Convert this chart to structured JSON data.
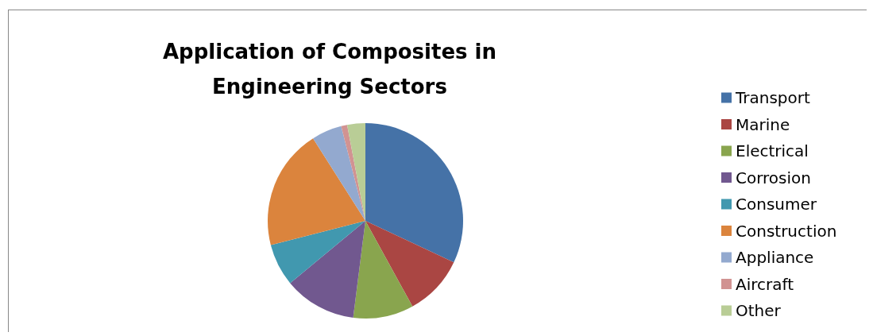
{
  "chart_data": {
    "type": "pie",
    "title": "Application of Composites in\nEngineering Sectors",
    "categories": [
      "Transport",
      "Marine",
      "Electrical",
      "Corrosion",
      "Consumer",
      "Construction",
      "Appliance",
      "Aircraft",
      "Other"
    ],
    "values": [
      32,
      10,
      10,
      12,
      7,
      20,
      5,
      1,
      3
    ],
    "colors": [
      "#4572a7",
      "#aa4643",
      "#89a54e",
      "#71588f",
      "#4198af",
      "#db843d",
      "#93a9cf",
      "#d19392",
      "#b9cd96"
    ],
    "legend": "right"
  }
}
